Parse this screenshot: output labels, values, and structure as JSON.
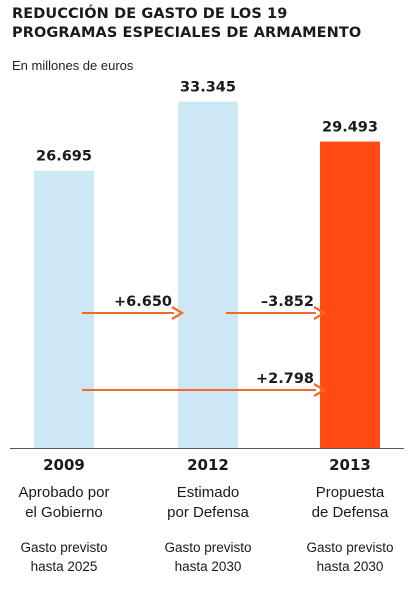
{
  "chart_data": {
    "type": "bar",
    "title": "REDUCCIÓN DE GASTO DE LOS 19\nPROGRAMAS ESPECIALES DE ARMAMENTO",
    "subtitle": "En millones de euros",
    "categories": [
      "2009",
      "2012",
      "2013"
    ],
    "values": [
      26695,
      33345,
      29493
    ],
    "value_labels": [
      "26.695",
      "33.345",
      "29.493"
    ],
    "descriptions": [
      [
        "Aprobado por",
        "el Gobierno"
      ],
      [
        "Estimado",
        "por Defensa"
      ],
      [
        "Propuesta",
        "de Defensa"
      ]
    ],
    "notes": [
      [
        "Gasto previsto",
        "hasta 2025"
      ],
      [
        "Gasto previsto",
        "hasta 2030"
      ],
      [
        "Gasto previsto",
        "hasta 2030"
      ]
    ],
    "bar_colors": [
      "#cde7f4",
      "#cde7f4",
      "#ff4a12"
    ],
    "ylim": [
      0,
      36000
    ],
    "changes": [
      {
        "from": 0,
        "to": 1,
        "label": "+6.650",
        "value": 6650
      },
      {
        "from": 1,
        "to": 2,
        "label": "–3.852",
        "value": -3852
      },
      {
        "from": 0,
        "to": 2,
        "label": "+2.798",
        "value": 2798
      }
    ],
    "arrow_color": "#f26a2c"
  }
}
